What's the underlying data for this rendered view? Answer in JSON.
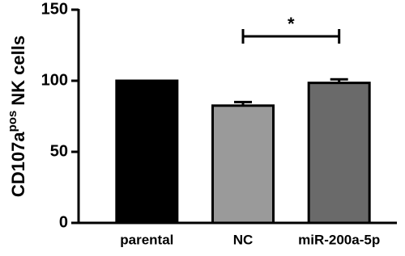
{
  "chart_data": {
    "type": "bar",
    "ylabel": [
      "CD107a",
      "pos",
      "NK cells"
    ],
    "categories": [
      "parental",
      "NC",
      "miR-200a-5p"
    ],
    "values": [
      100,
      82.5,
      98.5
    ],
    "errors": [
      null,
      2.5,
      2.5
    ],
    "colors": [
      "#000000",
      "#9a9a9a",
      "#6a6a6a"
    ],
    "ylim": [
      0,
      150
    ],
    "yticks": [
      0,
      50,
      100,
      150
    ],
    "annotations": [
      {
        "text": "*",
        "between": [
          1,
          2
        ]
      }
    ]
  }
}
